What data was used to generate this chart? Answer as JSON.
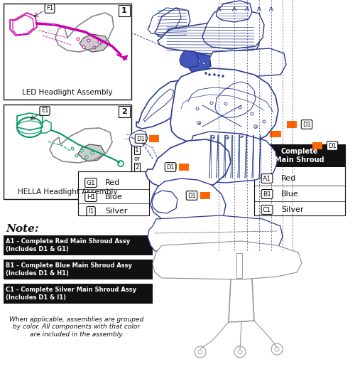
{
  "bg_color": "#ffffff",
  "diagram_color": "#2b3a8c",
  "magenta_color": "#cc00aa",
  "green_color": "#009966",
  "orange_color": "#ff6600",
  "black_color": "#111111",
  "gray_color": "#999999",
  "light_blue": "#4455bb",
  "box1_label": "LED Headlight Assembly",
  "box1_num": "1",
  "box1_callout": "F1",
  "box2_label": "HELLA Headlight Assembly",
  "box2_num": "2",
  "box2_callout": "E1",
  "legend_items": [
    {
      "code": "G1",
      "color_name": "Red"
    },
    {
      "code": "H1",
      "color_name": "Blue"
    },
    {
      "code": "I1",
      "color_name": "Silver"
    }
  ],
  "main_shroud_header": "Complete\nMain Shroud",
  "main_shroud_items": [
    {
      "code": "A1",
      "color_name": "Red"
    },
    {
      "code": "B1",
      "color_name": "Blue"
    },
    {
      "code": "C1",
      "color_name": "Silver"
    }
  ],
  "note_title": "Note:",
  "note_items": [
    "A1 - Complete Red Main Shroud Assy\n(Includes D1 & G1)",
    "B1 - Complete Blue Main Shroud Assy\n(Includes D1 & H1)",
    "C1 - Complete Silver Main Shroud Assy\n(Includes D1 & I1)"
  ],
  "footer_text": "When applicable, assemblies are grouped\nby color. All components with that color\nare included in the assembly."
}
